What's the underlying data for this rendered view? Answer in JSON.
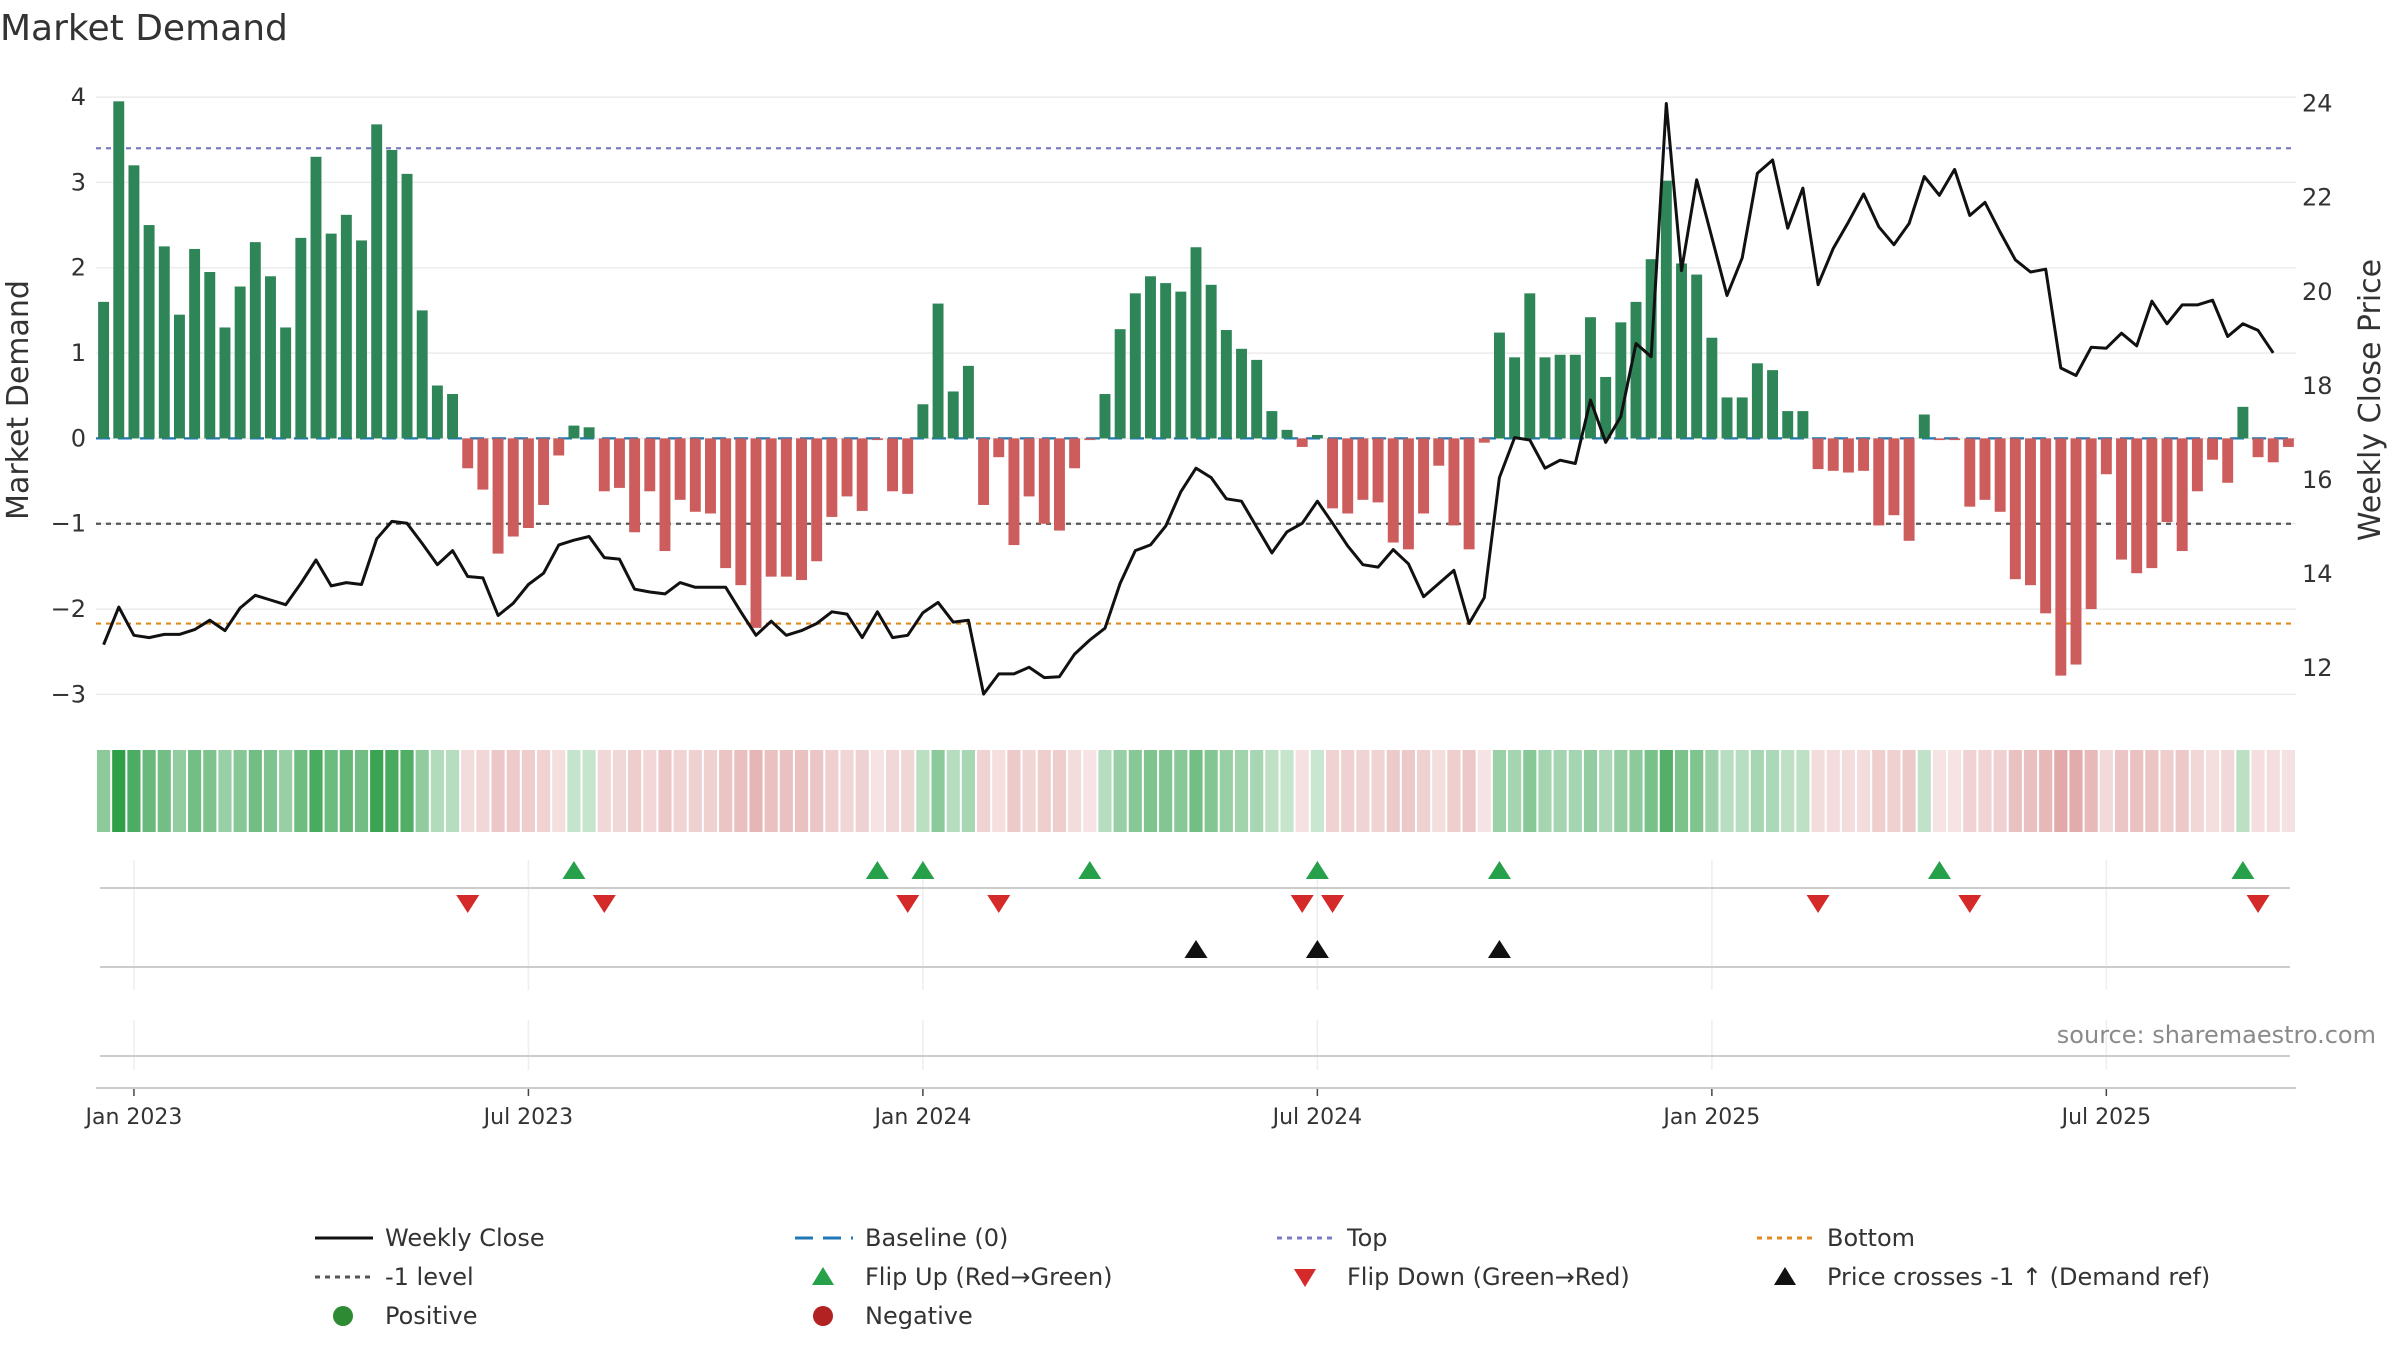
{
  "chart_data": {
    "type": "bar",
    "title": "Market Demand",
    "ylabel": "Market Demand",
    "ylabel_right": "Weekly Close Price",
    "ylim": [
      -3.3,
      4.2
    ],
    "ylim_right": [
      10.9,
      24.5
    ],
    "yticks": [
      "4",
      "3",
      "2",
      "1",
      "0",
      "−1",
      "−2",
      "−3"
    ],
    "yticks_right": [
      "24",
      "22",
      "20",
      "18",
      "16",
      "14",
      "12"
    ],
    "x_labels": [
      "Jan 2023",
      "Jul 2023",
      "Jan 2024",
      "Jul 2024",
      "Jan 2025",
      "Jul 2025"
    ],
    "x_label_index": [
      2,
      28,
      54,
      80,
      106,
      132
    ],
    "demand": [
      1.6,
      3.95,
      3.2,
      2.5,
      2.25,
      1.45,
      2.22,
      1.95,
      1.3,
      1.78,
      2.3,
      1.9,
      1.3,
      2.35,
      3.3,
      2.4,
      2.62,
      2.32,
      3.68,
      3.38,
      3.1,
      1.5,
      0.62,
      0.52,
      -0.35,
      -0.6,
      -1.35,
      -1.15,
      -1.05,
      -0.78,
      -0.2,
      0.15,
      0.13,
      -0.62,
      -0.58,
      -1.1,
      -0.62,
      -1.32,
      -0.72,
      -0.86,
      -0.88,
      -1.52,
      -1.72,
      -2.22,
      -1.62,
      -1.62,
      -1.66,
      -1.44,
      -0.92,
      -0.68,
      -0.85,
      -0.02,
      -0.62,
      -0.65,
      0.4,
      1.58,
      0.55,
      0.85,
      -0.78,
      -0.22,
      -1.25,
      -0.68,
      -1.0,
      -1.08,
      -0.35,
      -0.02,
      0.52,
      1.28,
      1.7,
      1.9,
      1.82,
      1.72,
      2.24,
      1.8,
      1.27,
      1.05,
      0.92,
      0.32,
      0.1,
      -0.1,
      0.04,
      -0.82,
      -0.88,
      -0.72,
      -0.75,
      -1.22,
      -1.3,
      -0.88,
      -0.32,
      -1.02,
      -1.3,
      -0.05,
      1.24,
      0.95,
      1.7,
      0.95,
      0.98,
      0.98,
      1.42,
      0.72,
      1.36,
      1.6,
      2.1,
      3.02,
      2.05,
      1.92,
      1.18,
      0.48,
      0.48,
      0.88,
      0.8,
      0.32,
      0.32,
      -0.36,
      -0.38,
      -0.4,
      -0.38,
      -1.02,
      -0.9,
      -1.2,
      0.28,
      -0.02,
      -0.02,
      -0.8,
      -0.72,
      -0.86,
      -1.65,
      -1.72,
      -2.05,
      -2.78,
      -2.65,
      -2.0,
      -0.42,
      -1.42,
      -1.58,
      -1.52,
      -0.98,
      -1.32,
      -0.62,
      -0.25,
      -0.52,
      0.37,
      -0.22,
      -0.28,
      -0.1
    ],
    "close": [
      12.5,
      13.3,
      12.7,
      12.65,
      12.72,
      12.72,
      12.82,
      13.02,
      12.8,
      13.28,
      13.55,
      13.45,
      13.35,
      13.8,
      14.3,
      13.75,
      13.82,
      13.78,
      14.75,
      15.12,
      15.08,
      14.65,
      14.2,
      14.5,
      13.95,
      13.92,
      13.12,
      13.38,
      13.78,
      14.02,
      14.62,
      14.72,
      14.8,
      14.35,
      14.32,
      13.68,
      13.62,
      13.58,
      13.82,
      13.72,
      13.72,
      13.72,
      13.2,
      12.7,
      13.0,
      12.7,
      12.8,
      12.95,
      13.2,
      13.15,
      12.65,
      13.2,
      12.65,
      12.7,
      13.18,
      13.4,
      12.98,
      13.02,
      11.45,
      11.88,
      11.88,
      12.02,
      11.8,
      11.82,
      12.3,
      12.6,
      12.85,
      13.8,
      14.5,
      14.62,
      15.02,
      15.75,
      16.25,
      16.05,
      15.6,
      15.55,
      15.0,
      14.45,
      14.9,
      15.08,
      15.55,
      15.08,
      14.6,
      14.2,
      14.15,
      14.52,
      14.22,
      13.52,
      13.8,
      14.08,
      12.95,
      13.5,
      16.05,
      16.9,
      16.85,
      16.25,
      16.42,
      16.35,
      17.7,
      16.8,
      17.35,
      18.9,
      18.62,
      24.0,
      20.45,
      22.38,
      21.15,
      19.92,
      20.72,
      22.52,
      22.8,
      21.35,
      22.2,
      20.15,
      20.92,
      21.48,
      22.08,
      21.38,
      21.0,
      21.45,
      22.45,
      22.05,
      22.6,
      21.62,
      21.9,
      21.27,
      20.68,
      20.42,
      20.48,
      18.38,
      18.22,
      18.82,
      18.8,
      19.12,
      18.85,
      19.8,
      19.32,
      19.72,
      19.72,
      19.82,
      19.05,
      19.32,
      19.18,
      18.7
    ],
    "reference_lines": [
      {
        "name": "Baseline (0)",
        "value": 0,
        "color": "#1f77b4",
        "dash": "14,8"
      },
      {
        "name": "Top",
        "value": 3.4,
        "color": "#7b7bc4",
        "dash": "5,5"
      },
      {
        "name": "-1 level",
        "value": -1,
        "color": "#555555",
        "dash": "5,5"
      },
      {
        "name": "Bottom",
        "value": -2.17,
        "color": "#e08a1c",
        "dash": "5,5"
      }
    ],
    "flip_up_index": [
      31,
      51,
      54,
      65,
      80,
      92,
      121,
      141
    ],
    "flip_down_index": [
      24,
      33,
      53,
      59,
      79,
      81,
      113,
      123,
      142
    ],
    "price_cross_index": [
      72,
      80,
      92
    ],
    "source": "source: sharemaestro.com",
    "colors": {
      "positive_bar": "#2e8558",
      "negative_bar": "#cd5c5c",
      "close_line": "#111111",
      "flip_up": "#27a04a",
      "flip_down": "#d42a2a",
      "cross": "#111111",
      "positive_dot": "#2e8b34",
      "negative_dot": "#b22222"
    },
    "legend": [
      {
        "label": "Weekly Close",
        "kind": "line",
        "color": "#111111"
      },
      {
        "label": "Baseline (0)",
        "kind": "dash-long",
        "color": "#1f77b4"
      },
      {
        "label": "Top",
        "kind": "dash-short",
        "color": "#7b7bc4"
      },
      {
        "label": "Bottom",
        "kind": "dash-short",
        "color": "#e08a1c"
      },
      {
        "label": "-1 level",
        "kind": "dash-short",
        "color": "#555555"
      },
      {
        "label": "Flip Up (Red→Green)",
        "kind": "tri-up",
        "color": "#27a04a"
      },
      {
        "label": "Flip Down (Green→Red)",
        "kind": "tri-down",
        "color": "#d42a2a"
      },
      {
        "label": "Price crosses -1 ↑ (Demand ref)",
        "kind": "tri-up",
        "color": "#111111"
      },
      {
        "label": "Positive",
        "kind": "dot",
        "color": "#2e8b34"
      },
      {
        "label": "Negative",
        "kind": "dot",
        "color": "#b22222"
      }
    ]
  }
}
